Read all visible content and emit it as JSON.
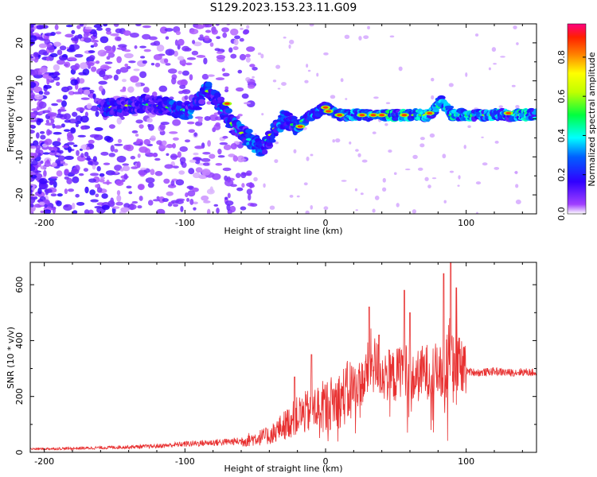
{
  "title": "S129.2023.153.23.11.G09",
  "chart_data": [
    {
      "type": "heatmap",
      "panel": "spectrogram",
      "xlabel": "Height of straight line (km)",
      "ylabel": "Frequency (Hz)",
      "xlim": [
        -210,
        150
      ],
      "ylim": [
        -25,
        25
      ],
      "xticks": [
        -200,
        -100,
        0,
        100
      ],
      "xtick_labels": [
        "-200",
        "-100",
        "0",
        "100"
      ],
      "yticks": [
        -20,
        -10,
        0,
        10,
        20
      ],
      "ytick_labels": [
        "-20",
        "-10",
        "0",
        "10",
        "20"
      ],
      "colorbar": {
        "label": "Normalized spectral amplitude",
        "range": [
          0,
          0.97
        ],
        "ticks": [
          0,
          0.2,
          0.4,
          0.6,
          0.8
        ],
        "tick_labels": [
          "0.0",
          "0.2",
          "0.4",
          "0.6",
          "0.8"
        ],
        "colormap": [
          "#ffffff",
          "#8000ff",
          "#0000ff",
          "#00ffff",
          "#00ff00",
          "#ffff00",
          "#ff8000",
          "#ff0000",
          "#ff0080"
        ]
      },
      "trace_km": [
        -150,
        -130,
        -110,
        -95,
        -85,
        -75,
        -65,
        -55,
        -45,
        -38,
        -30,
        -20,
        -10,
        0,
        10,
        30,
        50,
        60,
        75,
        82,
        90,
        100,
        120,
        150
      ],
      "trace_hz": [
        3,
        4,
        3,
        2,
        8,
        4,
        -2,
        -5,
        -8,
        -4,
        0,
        -2,
        1,
        3,
        1,
        1,
        1,
        1,
        1,
        5,
        1,
        1,
        1,
        1
      ]
    },
    {
      "type": "line",
      "panel": "snr",
      "xlabel": "Height of straight line (km)",
      "ylabel": "SNR (10 * v/v)",
      "xlim": [
        -210,
        150
      ],
      "ylim": [
        0,
        680
      ],
      "xticks": [
        -200,
        -100,
        0,
        100
      ],
      "xtick_labels": [
        "-200",
        "-100",
        "0",
        "100"
      ],
      "yticks": [
        0,
        200,
        400,
        600
      ],
      "ytick_labels": [
        "0",
        "200",
        "400",
        "600"
      ],
      "series": [
        {
          "name": "SNR",
          "color": "#e83030",
          "x": [
            -210,
            -180,
            -150,
            -120,
            -100,
            -80,
            -60,
            -40,
            -30,
            -20,
            -10,
            0,
            10,
            20,
            28,
            32,
            40,
            50,
            56,
            60,
            70,
            80,
            85,
            88,
            92,
            96,
            100,
            110,
            120,
            130,
            140,
            150
          ],
          "y": [
            12,
            14,
            18,
            22,
            30,
            35,
            40,
            60,
            95,
            130,
            150,
            170,
            190,
            230,
            260,
            330,
            280,
            270,
            330,
            250,
            290,
            290,
            260,
            380,
            320,
            300,
            290,
            285,
            290,
            285,
            288,
            285
          ]
        }
      ],
      "spikes": [
        {
          "x": -22,
          "y": 270
        },
        {
          "x": -10,
          "y": 350
        },
        {
          "x": 31,
          "y": 520
        },
        {
          "x": 38,
          "y": 420
        },
        {
          "x": 56,
          "y": 580
        },
        {
          "x": 60,
          "y": 500
        },
        {
          "x": 84,
          "y": 640
        },
        {
          "x": 89,
          "y": 680
        },
        {
          "x": 93,
          "y": 590
        }
      ]
    }
  ]
}
